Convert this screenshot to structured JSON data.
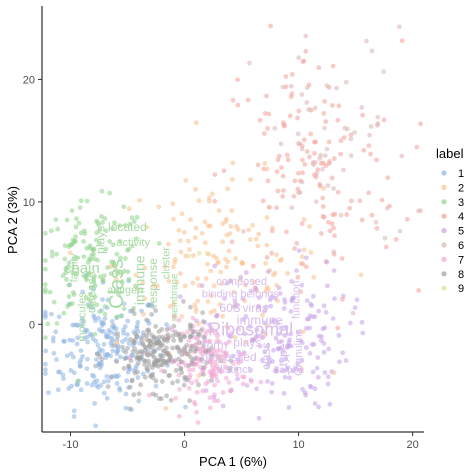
{
  "chart_data": {
    "type": "scatter",
    "title": "",
    "xlabel": "PCA 1 (6%)",
    "ylabel": "PCA 2 (3%)",
    "xlim": [
      -12.5,
      21
    ],
    "ylim": [
      -8.8,
      26
    ],
    "xticks": [
      -10,
      0,
      10,
      20
    ],
    "yticks": [
      0,
      10,
      20
    ],
    "grid": false,
    "legend_title": "label",
    "legend_position": "right",
    "series": [
      {
        "name": "1",
        "color": "#8db3e2",
        "center": [
          -7,
          -2
        ],
        "spread": [
          2.6,
          2.4
        ],
        "count": 220
      },
      {
        "name": "2",
        "color": "#f9c08a",
        "center": [
          3,
          5
        ],
        "spread": [
          4.5,
          3.5
        ],
        "count": 160
      },
      {
        "name": "3",
        "color": "#8fd38a",
        "center": [
          -8,
          5
        ],
        "spread": [
          2.4,
          2.4
        ],
        "count": 150
      },
      {
        "name": "4",
        "color": "#f4a09a",
        "center": [
          11,
          12
        ],
        "spread": [
          4,
          5.5
        ],
        "count": 150
      },
      {
        "name": "5",
        "color": "#c7a2e8",
        "center": [
          8,
          -1
        ],
        "spread": [
          3.2,
          3
        ],
        "count": 190
      },
      {
        "name": "6",
        "color": "#d9b7b2",
        "center": [
          13,
          14
        ],
        "spread": [
          3.5,
          5
        ],
        "count": 60
      },
      {
        "name": "7",
        "color": "#f3a6d3",
        "center": [
          2,
          -3
        ],
        "spread": [
          1.8,
          1.6
        ],
        "count": 160
      },
      {
        "name": "8",
        "color": "#9e9e9e",
        "center": [
          -2,
          -2.5
        ],
        "spread": [
          2.2,
          1.5
        ],
        "count": 230
      },
      {
        "name": "9",
        "color": "#e4dd93",
        "center": [
          0.5,
          6
        ],
        "spread": [
          0.5,
          0.5
        ],
        "count": 3
      }
    ],
    "annotations": [
      {
        "text": "located",
        "x": -5.0,
        "y": 7.6,
        "size": 12,
        "color": "#a8dba4",
        "rotate": 0
      },
      {
        "text": "plays",
        "x": -7.0,
        "y": 6.9,
        "size": 12,
        "color": "#a8dba4",
        "rotate": -90
      },
      {
        "text": "activity",
        "x": -4.5,
        "y": 6.4,
        "size": 11,
        "color": "#a8dba4",
        "rotate": 0
      },
      {
        "text": "chain",
        "x": -9.0,
        "y": 4.2,
        "size": 15,
        "color": "#a8dba4",
        "rotate": 0
      },
      {
        "text": "family",
        "x": -9.4,
        "y": 4.6,
        "size": 11,
        "color": "#a8dba4",
        "rotate": -90
      },
      {
        "text": "Class",
        "x": -5.4,
        "y": 3.3,
        "size": 20,
        "color": "#a8dba4",
        "rotate": -90
      },
      {
        "text": "immune",
        "x": -3.5,
        "y": 3.6,
        "size": 14,
        "color": "#a8dba4",
        "rotate": -90
      },
      {
        "text": "response",
        "x": -2.4,
        "y": 3.4,
        "size": 12,
        "color": "#a8dba4",
        "rotate": -90
      },
      {
        "text": "cluster",
        "x": -1.3,
        "y": 5.0,
        "size": 11,
        "color": "#a8dba4",
        "rotate": -90
      },
      {
        "text": "disease",
        "x": -7.8,
        "y": 2.6,
        "size": 12,
        "color": "#a8dba4",
        "rotate": -90
      },
      {
        "text": "molecules",
        "x": -8.7,
        "y": 0.6,
        "size": 11,
        "color": "#a8dba4",
        "rotate": -90
      },
      {
        "text": "antigen",
        "x": -5.2,
        "y": 2.5,
        "size": 11,
        "color": "#a8dba4",
        "rotate": 0
      },
      {
        "text": "membrane",
        "x": -0.6,
        "y": 2.2,
        "size": 10,
        "color": "#a8dba4",
        "rotate": -90
      },
      {
        "text": "composed",
        "x": 5.0,
        "y": 3.2,
        "size": 11,
        "color": "#d8bfee",
        "rotate": 0
      },
      {
        "text": "binding belongs",
        "x": 4.9,
        "y": 2.2,
        "size": 11,
        "color": "#d8bfee",
        "rotate": 0
      },
      {
        "text": "60S",
        "x": 4.0,
        "y": 1.0,
        "size": 12,
        "color": "#d8bfee",
        "rotate": 0
      },
      {
        "text": "virus",
        "x": 6.2,
        "y": 1.0,
        "size": 12,
        "color": "#d8bfee",
        "rotate": 0
      },
      {
        "text": "immune",
        "x": 6.6,
        "y": 0.0,
        "size": 13,
        "color": "#d8bfee",
        "rotate": 0
      },
      {
        "text": "function",
        "x": 10.1,
        "y": 2.0,
        "size": 11,
        "color": "#d8bfee",
        "rotate": -90
      },
      {
        "text": "Ribosomal",
        "x": 5.8,
        "y": -0.9,
        "size": 18,
        "color": "#d8bfee",
        "rotate": 0
      },
      {
        "text": "form",
        "x": 2.7,
        "y": -2.0,
        "size": 12,
        "color": "#d8bfee",
        "rotate": 0
      },
      {
        "text": "plays",
        "x": 5.5,
        "y": -1.8,
        "size": 12,
        "color": "#d8bfee",
        "rotate": 0
      },
      {
        "text": "class",
        "x": 7.5,
        "y": -2.6,
        "size": 12,
        "color": "#d8bfee",
        "rotate": -90
      },
      {
        "text": "processed",
        "x": 3.9,
        "y": -3.0,
        "size": 12,
        "color": "#d8bfee",
        "rotate": 0
      },
      {
        "text": "type",
        "x": 9.0,
        "y": -2.5,
        "size": 12,
        "color": "#d8bfee",
        "rotate": -90
      },
      {
        "text": "Granulins",
        "x": 10.3,
        "y": -2.3,
        "size": 11,
        "color": "#d8bfee",
        "rotate": -90
      },
      {
        "text": "distinct",
        "x": 4.3,
        "y": -4.0,
        "size": 11,
        "color": "#d8bfee",
        "rotate": 0
      },
      {
        "text": "alpha",
        "x": 9.4,
        "y": -4.0,
        "size": 10,
        "color": "#d8bfee",
        "rotate": 0
      }
    ]
  }
}
